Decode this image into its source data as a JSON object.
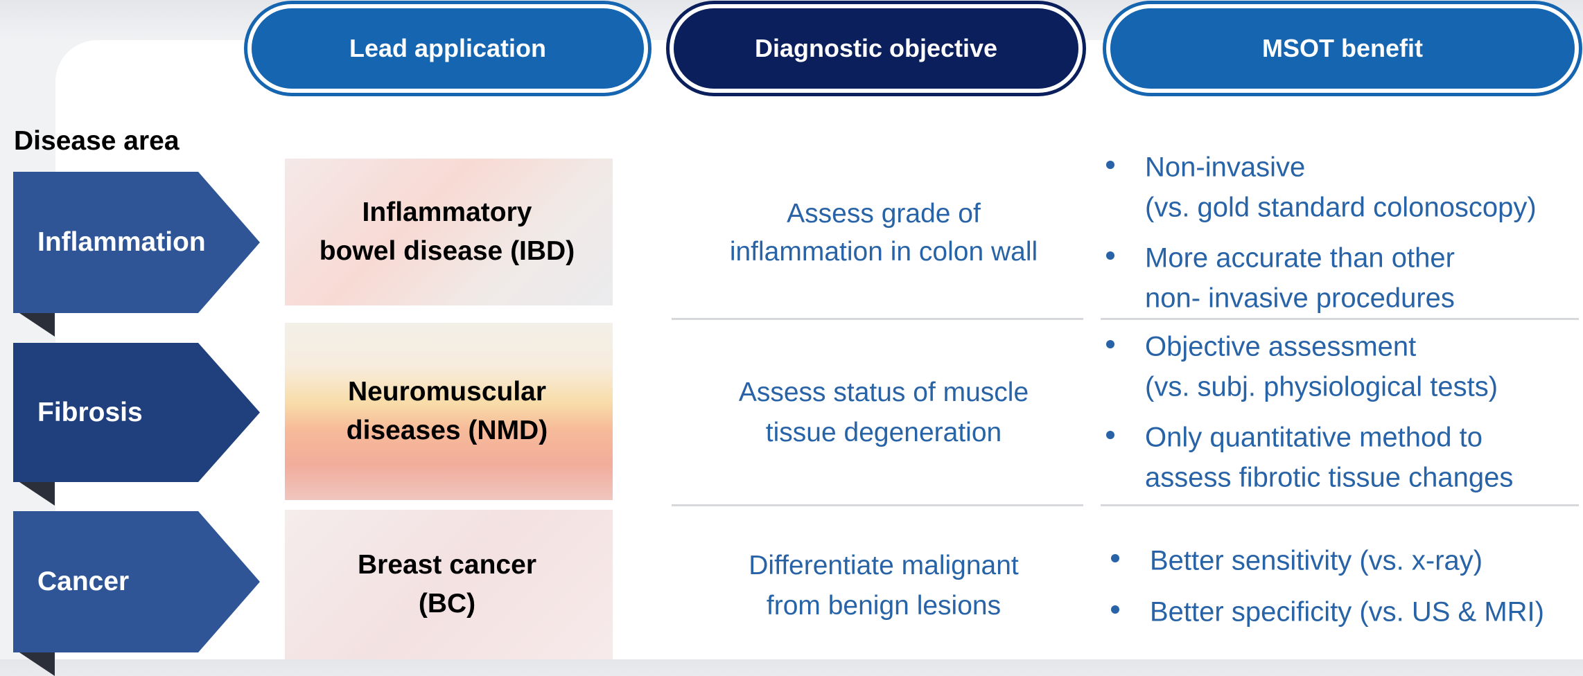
{
  "headers": [
    "Lead application",
    "Diagnostic objective",
    "MSOT benefit"
  ],
  "disease_area_label": "Disease area",
  "rows": [
    {
      "area": "Inflammation",
      "application": [
        "Inflammatory",
        "bowel disease (IBD)"
      ],
      "objective": [
        "Assess grade of",
        "inflammation in colon wall"
      ],
      "benefits": [
        [
          "Non-invasive",
          "(vs. gold standard colonoscopy)"
        ],
        [
          "More accurate than other",
          "non- invasive procedures"
        ]
      ]
    },
    {
      "area": "Fibrosis",
      "application": [
        "Neuromuscular",
        "diseases (NMD)"
      ],
      "objective": [
        "Assess status of muscle",
        "tissue degeneration"
      ],
      "benefits": [
        [
          "Objective assessment",
          "(vs. subj. physiological tests)"
        ],
        [
          "Only quantitative method to",
          "assess fibrotic tissue changes"
        ]
      ]
    },
    {
      "area": "Cancer",
      "application": [
        "Breast cancer",
        "(BC)"
      ],
      "objective": [
        "Differentiate malignant",
        "from benign lesions"
      ],
      "benefits": [
        [
          "Better sensitivity (vs. x-ray)"
        ],
        [
          "Better specificity (vs. US & MRI)"
        ]
      ]
    }
  ]
}
